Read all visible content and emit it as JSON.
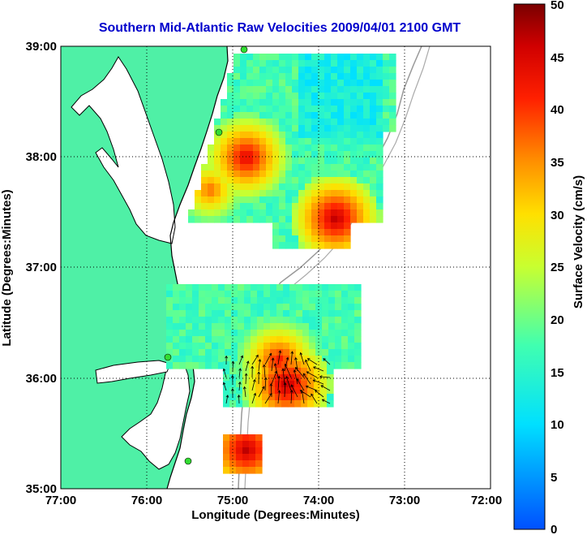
{
  "title": "Southern Mid-Atlantic Raw Velocities 2009/04/01 2100 GMT",
  "x_axis": {
    "label": "Longitude (Degrees:Minutes)",
    "ticks": [
      "77:00",
      "76:00",
      "75:00",
      "74:00",
      "73:00",
      "72:00"
    ]
  },
  "y_axis": {
    "label": "Latitude (Degrees:Minutes)",
    "ticks": [
      "39:00",
      "38:00",
      "37:00",
      "36:00",
      "35:00"
    ]
  },
  "colorbar": {
    "label": "Surface Velocity (cm/s)",
    "ticks": [
      "50",
      "45",
      "40",
      "35",
      "30",
      "25",
      "20",
      "15",
      "10",
      "5",
      "0"
    ],
    "range": [
      0,
      50
    ]
  },
  "map": {
    "lon_range": [
      -77,
      -72
    ],
    "lat_range": [
      35,
      39
    ],
    "grid": true,
    "land_color": "#4ff0a6",
    "colormap": "jet",
    "station_color": "#33dd33"
  }
}
